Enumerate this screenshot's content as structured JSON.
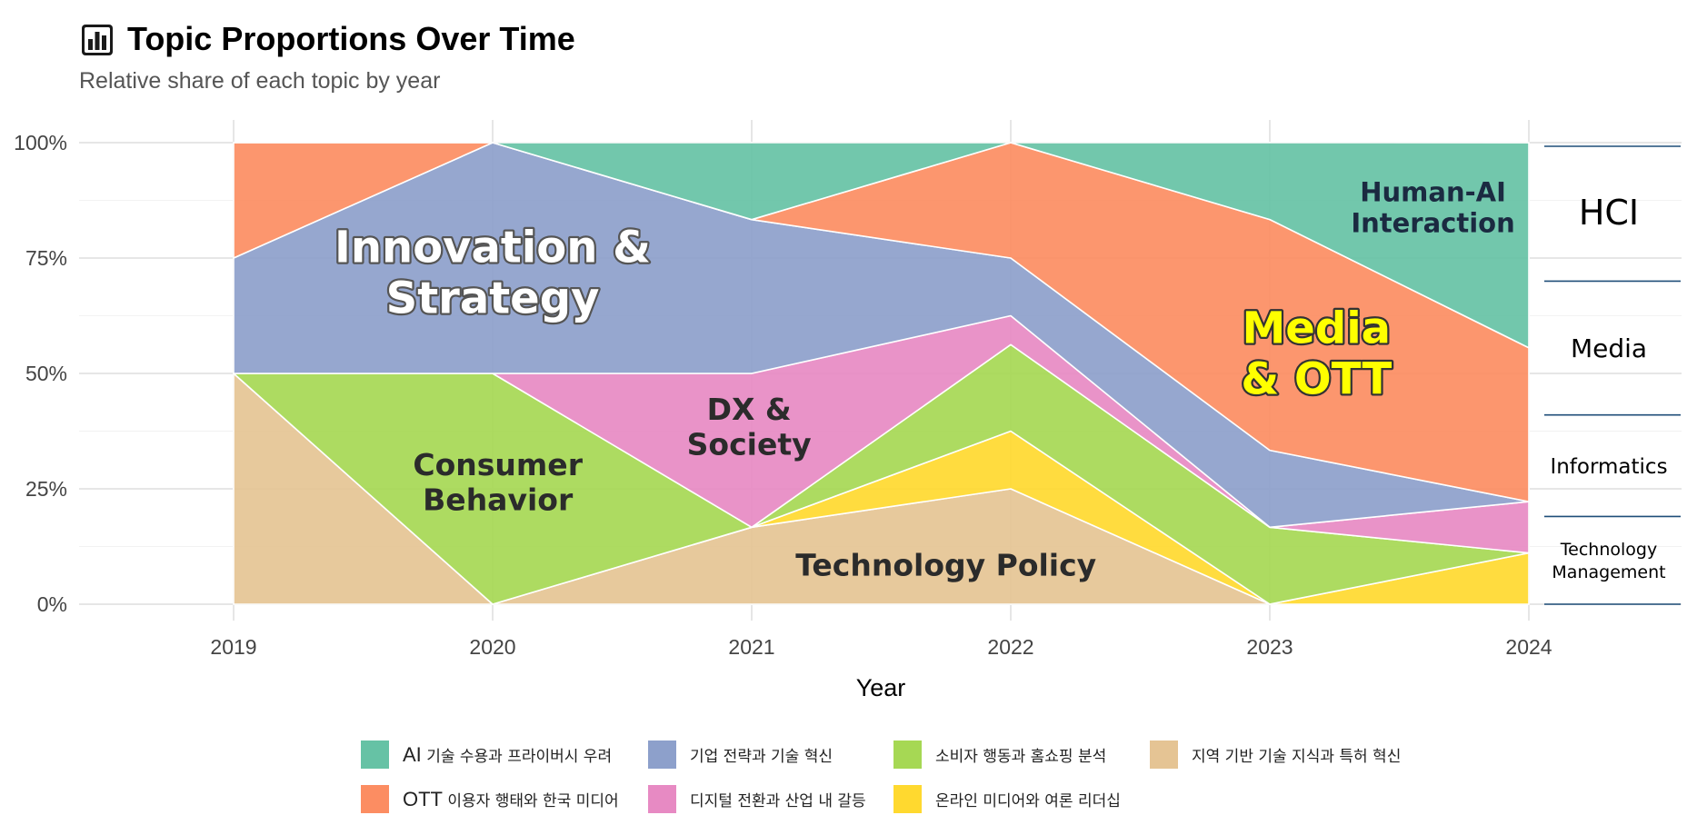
{
  "header": {
    "icon": "bar-chart-icon",
    "title": "Topic Proportions Over Time",
    "subtitle": "Relative share of each topic by year"
  },
  "chart_data": {
    "type": "area",
    "stacked": true,
    "normalized": true,
    "title": "Topic Proportions Over Time",
    "subtitle": "Relative share of each topic by year",
    "xlabel": "Year",
    "ylabel": "",
    "x": [
      2019,
      2020,
      2021,
      2022,
      2023,
      2024
    ],
    "x_tick_labels": [
      "2019",
      "2020",
      "2021",
      "2022",
      "2023",
      "2024"
    ],
    "ylim": [
      0,
      1
    ],
    "y_ticks": [
      0,
      0.25,
      0.5,
      0.75,
      1
    ],
    "y_tick_labels": [
      "0%",
      "25%",
      "50%",
      "75%",
      "100%"
    ],
    "grid": true,
    "legend_position": "bottom",
    "series": [
      {
        "name": "지역 기반 기술 지식과 특허 혁신",
        "color": "#E5C494",
        "values": [
          0.5,
          0,
          0.1667,
          0.25,
          0,
          0
        ]
      },
      {
        "name": "온라인 미디어와 여론 리더십",
        "color": "#FFD92F",
        "values": [
          0,
          0,
          0,
          0.125,
          0,
          0.1111
        ]
      },
      {
        "name": "소비자 행동과 홈쇼핑 분석",
        "color": "#A6D854",
        "values": [
          0,
          0.5,
          0,
          0.1875,
          0.1667,
          0
        ]
      },
      {
        "name": "디지털 전환과 산업 내 갈등",
        "color": "#E78AC3",
        "values": [
          0,
          0,
          0.3333,
          0.0625,
          0,
          0.1111
        ]
      },
      {
        "name": "기업 전략과 기술 혁신",
        "color": "#8DA0CB",
        "values": [
          0.25,
          0.5,
          0.3333,
          0.125,
          0.1667,
          0
        ]
      },
      {
        "name": "OTT 이용자 행태와 한국 미디어",
        "color": "#FC8D62",
        "values": [
          0.25,
          0,
          0,
          0.25,
          0.5,
          0.3333
        ]
      },
      {
        "name": "AI 기술 수용과 프라이버시 우려",
        "color": "#66C2A5",
        "values": [
          0,
          0,
          0.1667,
          0,
          0.1667,
          0.4444
        ]
      }
    ],
    "legend": [
      {
        "lead": "AI",
        "rest": " 기술 수용과 프라이버시 우려",
        "color": "#66C2A5"
      },
      {
        "lead": "",
        "rest": "기업 전략과 기술 혁신",
        "color": "#8DA0CB"
      },
      {
        "lead": "",
        "rest": "소비자 행동과 홈쇼핑 분석",
        "color": "#A6D854"
      },
      {
        "lead": "",
        "rest": "지역 기반 기술 지식과 특허 혁신",
        "color": "#E5C494"
      },
      {
        "lead": "OTT",
        "rest": " 이용자 행태와 한국 미디어",
        "color": "#FC8D62"
      },
      {
        "lead": "",
        "rest": "디지털 전환과 산업 내 갈등",
        "color": "#E78AC3"
      },
      {
        "lead": "",
        "rest": "온라인 미디어와 여론 리더십",
        "color": "#FFD92F"
      }
    ],
    "annotations": [
      {
        "lines": [
          "Innovation &",
          "Strategy"
        ],
        "x": 2020,
        "y": 0.72,
        "fill": "#FFFFFF",
        "outline": "#555555",
        "size": "xl"
      },
      {
        "lines": [
          "Consumer",
          "Behavior"
        ],
        "x": 2020.02,
        "y": 0.265,
        "fill": "#2B2B2B",
        "outline": "",
        "size": "m"
      },
      {
        "lines": [
          "DX &",
          "Society"
        ],
        "x": 2020.99,
        "y": 0.385,
        "fill": "#2B2B2B",
        "outline": "",
        "size": "m"
      },
      {
        "lines": [
          "Technology Policy"
        ],
        "x": 2021.75,
        "y": 0.085,
        "fill": "#2B2B2B",
        "outline": "",
        "size": "m"
      },
      {
        "lines": [
          "Media",
          "& OTT"
        ],
        "x": 2023.18,
        "y": 0.545,
        "fill": "#FFFF00",
        "outline": "#333333",
        "size": "xl"
      },
      {
        "lines": [
          "Human-AI",
          "Interaction"
        ],
        "x": 2023.63,
        "y": 0.86,
        "fill": "#1B2A41",
        "outline": "",
        "size": "s"
      }
    ],
    "side_groups": [
      {
        "label": "HCI",
        "from": 0.7,
        "to": 1.0,
        "size": "xl"
      },
      {
        "label": "Media",
        "from": 0.41,
        "to": 0.7,
        "size": "l"
      },
      {
        "label": "Informatics",
        "from": 0.19,
        "to": 0.41,
        "size": "m"
      },
      {
        "label": "Technology\nManagement",
        "from": 0,
        "to": 0.19,
        "size": "s"
      }
    ]
  }
}
